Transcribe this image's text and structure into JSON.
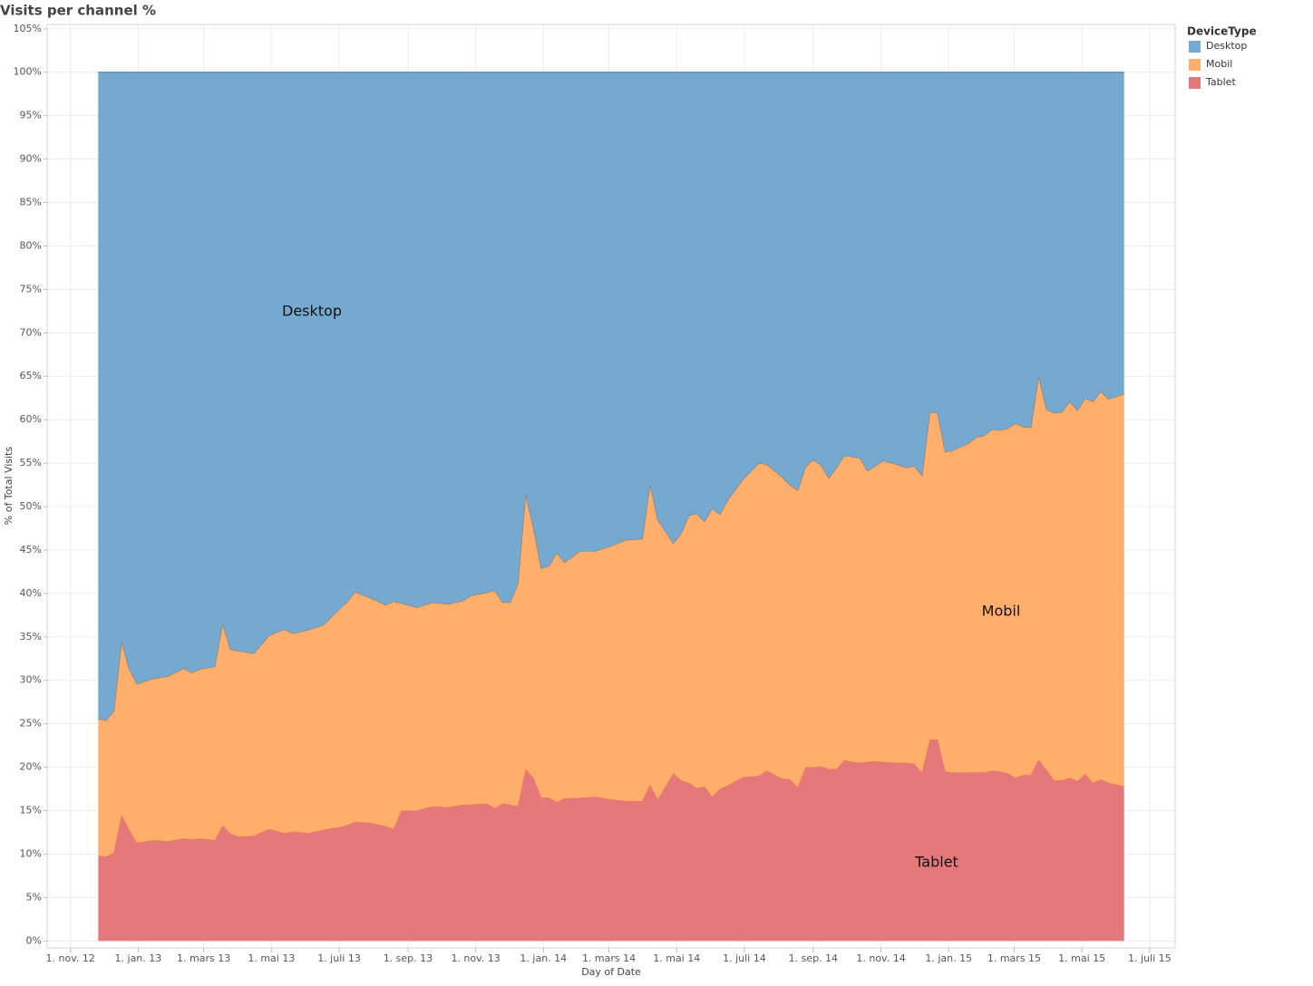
{
  "chart_data": {
    "type": "stacked_area",
    "title": "Visits per channel %",
    "x_label": "Day of Date",
    "y_label": "% of Total Visits",
    "legend_title": "DeviceType",
    "legend": "right",
    "grid": true,
    "annotations": [
      "Tablet",
      "Mobil",
      "Desktop"
    ],
    "x": [
      "2012-11-26",
      "2012-12-03",
      "2012-12-10",
      "2012-12-17",
      "2012-12-24",
      "2012-12-31",
      "2013-01-14",
      "2013-01-28",
      "2013-02-11",
      "2013-02-18",
      "2013-02-25",
      "2013-03-11",
      "2013-03-18",
      "2013-03-25",
      "2013-04-01",
      "2013-04-15",
      "2013-04-29",
      "2013-05-13",
      "2013-05-20",
      "2013-06-03",
      "2013-06-17",
      "2013-07-01",
      "2013-07-08",
      "2013-07-15",
      "2013-07-29",
      "2013-08-12",
      "2013-08-19",
      "2013-08-26",
      "2013-09-09",
      "2013-09-23",
      "2013-10-07",
      "2013-10-21",
      "2013-10-28",
      "2013-11-11",
      "2013-11-18",
      "2013-11-25",
      "2013-12-02",
      "2013-12-09",
      "2013-12-16",
      "2013-12-23",
      "2013-12-30",
      "2014-01-06",
      "2014-01-13",
      "2014-01-20",
      "2014-02-03",
      "2014-02-17",
      "2014-03-03",
      "2014-03-17",
      "2014-03-31",
      "2014-04-07",
      "2014-04-14",
      "2014-04-28",
      "2014-05-05",
      "2014-05-12",
      "2014-05-19",
      "2014-05-26",
      "2014-06-02",
      "2014-06-09",
      "2014-06-16",
      "2014-06-30",
      "2014-07-14",
      "2014-07-21",
      "2014-08-04",
      "2014-08-11",
      "2014-08-18",
      "2014-08-25",
      "2014-09-01",
      "2014-09-08",
      "2014-09-15",
      "2014-09-22",
      "2014-09-29",
      "2014-10-13",
      "2014-10-20",
      "2014-10-27",
      "2014-11-03",
      "2014-11-17",
      "2014-11-24",
      "2014-12-01",
      "2014-12-08",
      "2014-12-15",
      "2014-12-22",
      "2014-12-29",
      "2015-01-05",
      "2015-01-19",
      "2015-01-26",
      "2015-02-02",
      "2015-02-09",
      "2015-02-16",
      "2015-02-23",
      "2015-03-02",
      "2015-03-09",
      "2015-03-16",
      "2015-03-23",
      "2015-03-30",
      "2015-04-06",
      "2015-04-13",
      "2015-04-20",
      "2015-04-27",
      "2015-05-04",
      "2015-05-11",
      "2015-05-18",
      "2015-05-25",
      "2015-06-08"
    ],
    "series": [
      {
        "name": "Tablet",
        "color": "#e5787a",
        "line": "#f0705a",
        "values": [
          9.8,
          9.7,
          10.2,
          14.5,
          12.8,
          11.3,
          11.6,
          11.5,
          11.8,
          11.7,
          11.8,
          11.6,
          13.3,
          12.4,
          12.0,
          12.1,
          12.9,
          12.4,
          12.6,
          12.4,
          12.8,
          13.1,
          13.3,
          13.7,
          13.6,
          13.2,
          12.9,
          15.0,
          15.0,
          15.5,
          15.4,
          15.7,
          15.7,
          15.8,
          15.3,
          15.8,
          15.7,
          15.5,
          19.8,
          18.8,
          16.5,
          16.5,
          16.0,
          16.4,
          16.5,
          16.6,
          16.3,
          16.1,
          16.1,
          18.0,
          16.3,
          19.3,
          18.5,
          18.2,
          17.6,
          17.8,
          16.6,
          17.5,
          17.9,
          18.9,
          19.0,
          19.6,
          18.7,
          18.6,
          17.7,
          20.0,
          20.0,
          20.1,
          19.8,
          19.8,
          20.8,
          20.5,
          20.6,
          20.7,
          20.6,
          20.5,
          20.5,
          20.4,
          19.4,
          23.2,
          23.2,
          19.5,
          19.4,
          19.4,
          19.4,
          19.4,
          19.6,
          19.5,
          19.3,
          18.8,
          19.1,
          19.1,
          20.9,
          19.7,
          18.5,
          18.5,
          18.8,
          18.4,
          19.2,
          18.2,
          18.6,
          18.2,
          17.8
        ]
      },
      {
        "name": "Mobil",
        "color": "#ffae6b",
        "line": "#8c7a6a",
        "values": [
          15.8,
          15.7,
          16.3,
          20.0,
          18.5,
          18.3,
          18.6,
          19.0,
          19.6,
          19.2,
          19.5,
          20.0,
          23.3,
          21.2,
          21.4,
          21.0,
          22.3,
          23.5,
          22.8,
          23.4,
          23.6,
          25.1,
          25.7,
          26.5,
          25.9,
          25.5,
          26.2,
          23.9,
          23.4,
          23.5,
          23.4,
          23.5,
          24.1,
          24.3,
          25.1,
          23.2,
          23.3,
          25.7,
          31.7,
          28.7,
          26.4,
          26.7,
          28.7,
          27.2,
          28.4,
          28.3,
          29.2,
          30.1,
          30.2,
          34.6,
          32.2,
          26.5,
          28.4,
          30.8,
          31.6,
          30.5,
          33.2,
          31.6,
          32.9,
          34.3,
          36.0,
          35.3,
          34.7,
          33.9,
          34.2,
          34.6,
          35.4,
          34.7,
          33.5,
          34.7,
          35.1,
          35.1,
          33.5,
          34.0,
          34.7,
          34.3,
          34.0,
          34.3,
          34.2,
          37.7,
          37.6,
          36.8,
          37.1,
          37.9,
          38.6,
          38.8,
          39.3,
          39.3,
          39.7,
          40.8,
          40.1,
          40.0,
          44.2,
          41.5,
          42.3,
          42.4,
          43.3,
          42.7,
          43.3,
          43.9,
          44.7,
          44.2,
          45.2
        ]
      },
      {
        "name": "Desktop",
        "color": "#76a9cf",
        "line": "#4f86b3",
        "values": [
          74.4,
          74.6,
          73.5,
          65.5,
          68.7,
          70.4,
          69.8,
          69.5,
          68.6,
          69.1,
          68.7,
          68.4,
          63.4,
          66.4,
          66.6,
          66.9,
          64.8,
          64.1,
          64.6,
          64.2,
          63.6,
          61.8,
          61.0,
          59.8,
          60.5,
          61.3,
          60.9,
          61.1,
          61.6,
          61.0,
          61.2,
          60.8,
          60.2,
          59.9,
          59.6,
          61.0,
          61.0,
          58.8,
          48.5,
          52.5,
          57.1,
          56.8,
          55.3,
          56.4,
          55.1,
          55.1,
          54.5,
          53.8,
          53.7,
          47.4,
          51.5,
          54.2,
          53.1,
          51.0,
          50.8,
          51.7,
          50.2,
          50.9,
          49.2,
          46.8,
          45.0,
          45.1,
          46.6,
          47.5,
          48.1,
          45.4,
          44.6,
          45.2,
          46.7,
          45.5,
          44.1,
          44.4,
          45.9,
          45.3,
          44.7,
          45.2,
          45.5,
          45.3,
          46.4,
          39.1,
          39.2,
          43.7,
          43.5,
          42.7,
          42.0,
          41.8,
          41.1,
          41.2,
          41.0,
          40.4,
          40.8,
          40.9,
          34.9,
          38.8,
          39.2,
          39.1,
          37.9,
          38.9,
          37.5,
          37.9,
          36.7,
          37.6,
          37.0
        ]
      }
    ],
    "xlim": [
      "2012-10-11",
      "2015-07-24"
    ],
    "xticks": [
      {
        "value": "2012-11-01",
        "label": "1. nov. 12"
      },
      {
        "value": "2013-01-01",
        "label": "1. jan. 13"
      },
      {
        "value": "2013-03-01",
        "label": "1. mars 13"
      },
      {
        "value": "2013-05-01",
        "label": "1. mai 13"
      },
      {
        "value": "2013-07-01",
        "label": "1. juli 13"
      },
      {
        "value": "2013-09-01",
        "label": "1. sep. 13"
      },
      {
        "value": "2013-11-01",
        "label": "1. nov. 13"
      },
      {
        "value": "2014-01-01",
        "label": "1. jan. 14"
      },
      {
        "value": "2014-03-01",
        "label": "1. mars 14"
      },
      {
        "value": "2014-05-01",
        "label": "1. mai 14"
      },
      {
        "value": "2014-07-01",
        "label": "1. juli 14"
      },
      {
        "value": "2014-09-01",
        "label": "1. sep. 14"
      },
      {
        "value": "2014-11-01",
        "label": "1. nov. 14"
      },
      {
        "value": "2015-01-01",
        "label": "1. jan. 15"
      },
      {
        "value": "2015-03-01",
        "label": "1. mars 15"
      },
      {
        "value": "2015-05-01",
        "label": "1. mai 15"
      },
      {
        "value": "2015-07-01",
        "label": "1. juli 15"
      }
    ],
    "ylim": [
      -0.8,
      105.5
    ],
    "yticks": [
      {
        "value": 0,
        "label": "0%"
      },
      {
        "value": 5,
        "label": "5%"
      },
      {
        "value": 10,
        "label": "10%"
      },
      {
        "value": 15,
        "label": "15%"
      },
      {
        "value": 20,
        "label": "20%"
      },
      {
        "value": 25,
        "label": "25%"
      },
      {
        "value": 30,
        "label": "30%"
      },
      {
        "value": 35,
        "label": "35%"
      },
      {
        "value": 40,
        "label": "40%"
      },
      {
        "value": 45,
        "label": "45%"
      },
      {
        "value": 50,
        "label": "50%"
      },
      {
        "value": 55,
        "label": "55%"
      },
      {
        "value": 60,
        "label": "60%"
      },
      {
        "value": 65,
        "label": "65%"
      },
      {
        "value": 70,
        "label": "70%"
      },
      {
        "value": 75,
        "label": "75%"
      },
      {
        "value": 80,
        "label": "80%"
      },
      {
        "value": 85,
        "label": "85%"
      },
      {
        "value": 90,
        "label": "90%"
      },
      {
        "value": 95,
        "label": "95%"
      },
      {
        "value": 100,
        "label": "100%"
      },
      {
        "value": 105,
        "label": "105%"
      }
    ]
  }
}
